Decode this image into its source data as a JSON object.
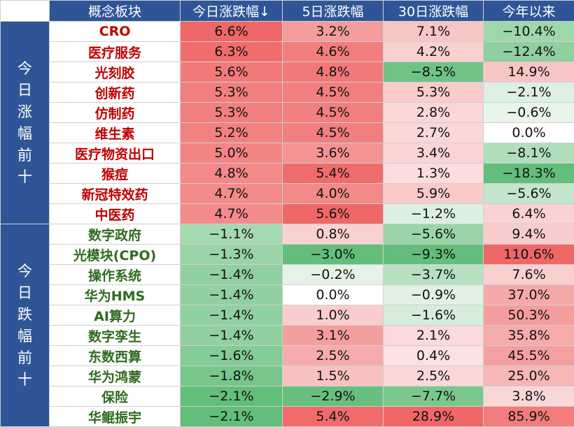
{
  "chart_data": {
    "type": "table",
    "columns": [
      "概念板块",
      "今日涨跌幅↓",
      "5日涨跌幅",
      "30日涨跌幅",
      "今年以来"
    ],
    "groups": [
      {
        "label": "今日涨幅前十",
        "kind": "gain",
        "rows": [
          {
            "name": "CRO",
            "values": [
              "6.6%",
              "3.2%",
              "7.1%",
              "−10.4%"
            ]
          },
          {
            "name": "医疗服务",
            "values": [
              "6.3%",
              "4.6%",
              "4.2%",
              "−12.4%"
            ]
          },
          {
            "name": "光刻胶",
            "values": [
              "5.6%",
              "4.8%",
              "−8.5%",
              "14.9%"
            ]
          },
          {
            "name": "创新药",
            "values": [
              "5.3%",
              "4.5%",
              "5.3%",
              "−2.1%"
            ]
          },
          {
            "name": "仿制药",
            "values": [
              "5.3%",
              "4.5%",
              "2.8%",
              "−0.6%"
            ]
          },
          {
            "name": "维生素",
            "values": [
              "5.2%",
              "4.5%",
              "2.7%",
              "0.0%"
            ]
          },
          {
            "name": "医疗物资出口",
            "values": [
              "5.0%",
              "3.6%",
              "3.4%",
              "−8.1%"
            ]
          },
          {
            "name": "猴痘",
            "values": [
              "4.8%",
              "5.4%",
              "1.3%",
              "−18.3%"
            ]
          },
          {
            "name": "新冠特效药",
            "values": [
              "4.7%",
              "4.0%",
              "5.9%",
              "−5.6%"
            ]
          },
          {
            "name": "中医药",
            "values": [
              "4.7%",
              "5.6%",
              "−1.2%",
              "6.4%"
            ]
          }
        ]
      },
      {
        "label": "今日跌幅前十",
        "kind": "loss",
        "rows": [
          {
            "name": "数字政府",
            "values": [
              "−1.1%",
              "0.8%",
              "−5.6%",
              "9.4%"
            ]
          },
          {
            "name": "光模块(CPO)",
            "values": [
              "−1.3%",
              "−3.0%",
              "−9.3%",
              "110.6%"
            ]
          },
          {
            "name": "操作系统",
            "values": [
              "−1.4%",
              "−0.2%",
              "−3.7%",
              "7.6%"
            ]
          },
          {
            "name": "华为HMS",
            "values": [
              "−1.4%",
              "0.0%",
              "−0.9%",
              "37.0%"
            ]
          },
          {
            "name": "AI算力",
            "values": [
              "−1.4%",
              "1.0%",
              "−1.6%",
              "50.3%"
            ]
          },
          {
            "name": "数字孪生",
            "values": [
              "−1.4%",
              "3.1%",
              "2.1%",
              "35.8%"
            ]
          },
          {
            "name": "东数西算",
            "values": [
              "−1.6%",
              "2.5%",
              "0.4%",
              "45.5%"
            ]
          },
          {
            "name": "华为鸿蒙",
            "values": [
              "−1.8%",
              "1.5%",
              "2.5%",
              "25.0%"
            ]
          },
          {
            "name": "保险",
            "values": [
              "−2.1%",
              "−2.9%",
              "−7.7%",
              "3.8%"
            ]
          },
          {
            "name": "华鲲振宇",
            "values": [
              "−2.1%",
              "5.4%",
              "28.9%",
              "85.9%"
            ]
          }
        ]
      }
    ],
    "colors": {
      "header": "#2f5597",
      "gain_name": "#c00000",
      "loss_name": "#2e6b1e",
      "positive_scale": "#f4cccc→#f06767",
      "negative_scale": "#eef7ee→#63be7b"
    }
  }
}
